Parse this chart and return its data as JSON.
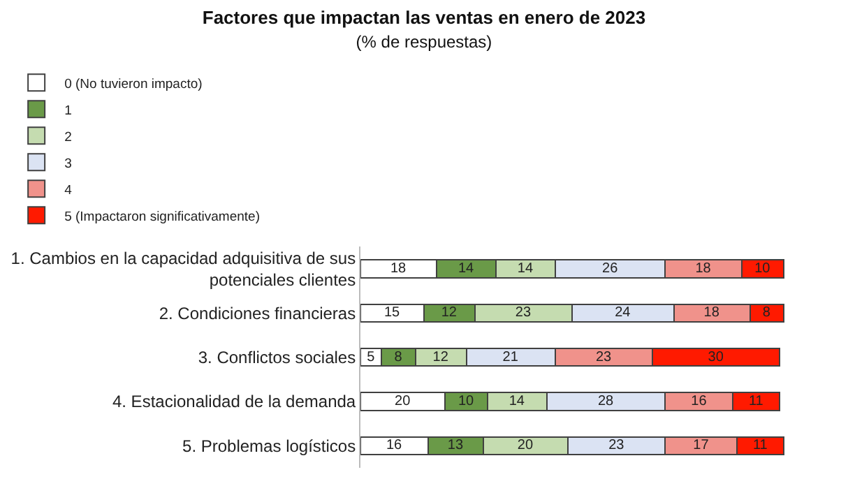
{
  "chart_data": {
    "type": "bar",
    "orientation": "horizontal",
    "stacked": true,
    "data_labels": true,
    "legend": "top",
    "title": "Factores que impactan las ventas en enero de 2023",
    "subtitle": "(% de respuestas)",
    "categories": [
      "1. Cambios en la capacidad adquisitiva de sus potenciales clientes",
      "2. Condiciones financieras",
      "3. Conflictos sociales",
      "4. Estacionalidad de la demanda",
      "5. Problemas logísticos"
    ],
    "series": [
      {
        "name": "0 (No tuvieron impacto)",
        "color": "#ffffff",
        "values": [
          18,
          15,
          5,
          20,
          16
        ]
      },
      {
        "name": "1",
        "color": "#6a9a48",
        "values": [
          14,
          12,
          8,
          10,
          13
        ]
      },
      {
        "name": "2",
        "color": "#c5dcb0",
        "values": [
          14,
          23,
          12,
          14,
          20
        ]
      },
      {
        "name": "3",
        "color": "#dbe3f3",
        "values": [
          26,
          24,
          21,
          28,
          23
        ]
      },
      {
        "name": "4",
        "color": "#f0928b",
        "values": [
          18,
          18,
          23,
          16,
          17
        ]
      },
      {
        "name": "5 (Impactaron significativamente)",
        "color": "#ff1a00",
        "values": [
          10,
          8,
          30,
          11,
          11
        ]
      }
    ]
  }
}
